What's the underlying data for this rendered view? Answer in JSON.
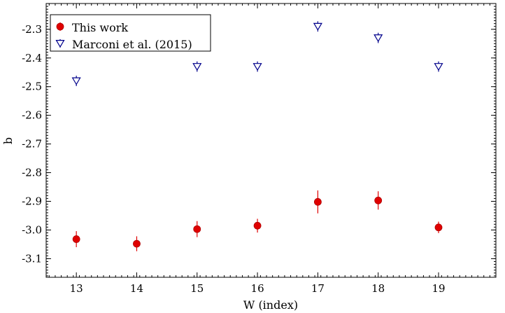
{
  "chart_data": {
    "type": "scatter",
    "xlabel": "W (index)",
    "ylabel": "b",
    "xlim": [
      12.5,
      19.95
    ],
    "ylim": [
      -3.165,
      -2.21
    ],
    "x_ticks": [
      13,
      14,
      15,
      16,
      17,
      18,
      19
    ],
    "y_ticks": [
      -2.3,
      -2.4,
      -2.5,
      -2.6,
      -2.7,
      -2.8,
      -2.9,
      -3.0,
      -3.1
    ],
    "x_tick_labels": [
      "13",
      "14",
      "15",
      "16",
      "17",
      "18",
      "19"
    ],
    "y_tick_labels": [
      "-2.3",
      "-2.4",
      "-2.5",
      "-2.6",
      "-2.7",
      "-2.8",
      "-2.9",
      "-3.0",
      "-3.1"
    ],
    "grid": false,
    "legend_position": "top-left",
    "series": [
      {
        "name": "This work",
        "marker": "filled-circle",
        "color": "#e00000",
        "points": [
          {
            "x": 13,
            "y": -3.032,
            "err": 0.028
          },
          {
            "x": 14,
            "y": -3.048,
            "err": 0.026
          },
          {
            "x": 15,
            "y": -2.997,
            "err": 0.028
          },
          {
            "x": 16,
            "y": -2.985,
            "err": 0.024
          },
          {
            "x": 17,
            "y": -2.902,
            "err": 0.04
          },
          {
            "x": 18,
            "y": -2.897,
            "err": 0.032
          },
          {
            "x": 19,
            "y": -2.991,
            "err": 0.02
          }
        ]
      },
      {
        "name": "Marconi et al. (2015)",
        "marker": "open-down-triangle",
        "color": "#00008b",
        "points": [
          {
            "x": 13,
            "y": -2.48,
            "err": 0.018
          },
          {
            "x": 15,
            "y": -2.43,
            "err": 0.018
          },
          {
            "x": 16,
            "y": -2.43,
            "err": 0.018
          },
          {
            "x": 17,
            "y": -2.29,
            "err": 0.018
          },
          {
            "x": 18,
            "y": -2.33,
            "err": 0.018
          },
          {
            "x": 19,
            "y": -2.43,
            "err": 0.018
          }
        ]
      }
    ]
  }
}
